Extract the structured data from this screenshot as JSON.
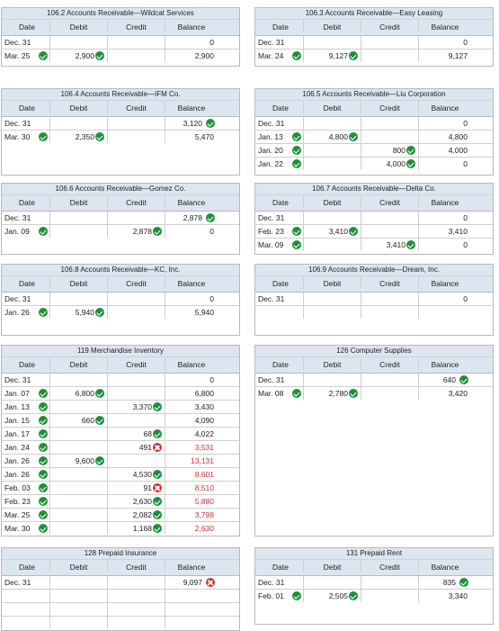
{
  "headers": {
    "date": "Date",
    "debit": "Debit",
    "credit": "Credit",
    "balance": "Balance"
  },
  "colors": {
    "check": "#1f8f3a",
    "cross": "#d0342c",
    "header_bg": "#dce6f0"
  },
  "ledgers": [
    {
      "title": "106.2 Accounts Receivable—Wildcat Services",
      "rows": [
        {
          "date": "Dec. 31",
          "debit": "",
          "credit": "",
          "balance": "0"
        },
        {
          "date": "Mar. 25",
          "date_ok": true,
          "debit": "2,900",
          "debit_ok": true,
          "credit": "",
          "balance": "2,900"
        }
      ]
    },
    {
      "title": "106.3 Accounts Receivable—Easy Leasing",
      "rows": [
        {
          "date": "Dec. 31",
          "debit": "",
          "credit": "",
          "balance": "0"
        },
        {
          "date": "Mar. 24",
          "date_ok": true,
          "debit": "9,127",
          "debit_ok": true,
          "credit": "",
          "balance": "9,127"
        }
      ]
    },
    {
      "title": "106.4 Accounts Receivable—IFM Co.",
      "rows": [
        {
          "date": "Dec. 31",
          "debit": "",
          "credit": "",
          "balance": "3,120",
          "balance_ok": true
        },
        {
          "date": "Mar. 30",
          "date_ok": true,
          "debit": "2,350",
          "debit_ok": true,
          "credit": "",
          "balance": "5,470"
        }
      ]
    },
    {
      "title": "106.5 Accounts Receivable—Liu Corporation",
      "rows": [
        {
          "date": "Dec. 31",
          "debit": "",
          "credit": "",
          "balance": "0"
        },
        {
          "date": "Jan. 13",
          "date_ok": true,
          "debit": "4,800",
          "debit_ok": true,
          "credit": "",
          "balance": "4,800"
        },
        {
          "date": "Jan. 20",
          "date_ok": true,
          "debit": "",
          "credit": "800",
          "credit_ok": true,
          "balance": "4,000"
        },
        {
          "date": "Jan. 22",
          "date_ok": true,
          "debit": "",
          "credit": "4,000",
          "credit_ok": true,
          "balance": "0"
        }
      ]
    },
    {
      "title": "106.6 Accounts Receivable—Gomez Co.",
      "rows": [
        {
          "date": "Dec. 31",
          "debit": "",
          "credit": "",
          "balance": "2,878",
          "balance_ok": true
        },
        {
          "date": "Jan. 09",
          "date_ok": true,
          "debit": "",
          "credit": "2,878",
          "credit_ok": true,
          "balance": "0"
        }
      ]
    },
    {
      "title": "106.7 Accounts Receivable—Delta Co.",
      "rows": [
        {
          "date": "Dec. 31",
          "debit": "",
          "credit": "",
          "balance": "0"
        },
        {
          "date": "Feb. 23",
          "date_ok": true,
          "debit": "3,410",
          "debit_ok": true,
          "credit": "",
          "balance": "3,410"
        },
        {
          "date": "Mar. 09",
          "date_ok": true,
          "debit": "",
          "credit": "3,410",
          "credit_ok": true,
          "balance": "0"
        }
      ]
    },
    {
      "title": "106.8 Accounts Receivable—KC, Inc.",
      "rows": [
        {
          "date": "Dec. 31",
          "debit": "",
          "credit": "",
          "balance": "0"
        },
        {
          "date": "Jan. 26",
          "date_ok": true,
          "debit": "5,940",
          "debit_ok": true,
          "credit": "",
          "balance": "5,940"
        }
      ]
    },
    {
      "title": "106.9 Accounts Receivable—Dream, Inc.",
      "rows": [
        {
          "date": "Dec. 31",
          "debit": "",
          "credit": "",
          "balance": "0"
        },
        {
          "date": "",
          "debit": "",
          "credit": "",
          "balance": ""
        }
      ]
    },
    {
      "title": "119 Merchandise Inventory",
      "rows": [
        {
          "date": "Dec. 31",
          "debit": "",
          "credit": "",
          "balance": "0"
        },
        {
          "date": "Jan. 07",
          "date_ok": true,
          "debit": "6,800",
          "debit_ok": true,
          "credit": "",
          "balance": "6,800"
        },
        {
          "date": "Jan. 13",
          "date_ok": true,
          "debit": "",
          "credit": "3,370",
          "credit_ok": true,
          "balance": "3,430"
        },
        {
          "date": "Jan. 15",
          "date_ok": true,
          "debit": "660",
          "debit_ok": true,
          "credit": "",
          "balance": "4,090"
        },
        {
          "date": "Jan. 17",
          "date_ok": true,
          "debit": "",
          "credit": "68",
          "credit_ok": true,
          "balance": "4,022"
        },
        {
          "date": "Jan. 24",
          "date_ok": true,
          "debit": "",
          "credit": "491",
          "credit_bad": true,
          "balance": "3,531",
          "balance_red": true
        },
        {
          "date": "Jan. 26",
          "date_ok": true,
          "debit": "9,600",
          "debit_ok": true,
          "credit": "",
          "balance": "13,131",
          "balance_red": true
        },
        {
          "date": "Jan. 26",
          "date_ok": true,
          "debit": "",
          "credit": "4,530",
          "credit_ok": true,
          "balance": "8,601",
          "balance_red": true
        },
        {
          "date": "Feb. 03",
          "date_ok": true,
          "debit": "",
          "credit": "91",
          "credit_bad": true,
          "balance": "8,510",
          "balance_red": true
        },
        {
          "date": "Feb. 23",
          "date_ok": true,
          "debit": "",
          "credit": "2,630",
          "credit_ok": true,
          "balance": "5,880",
          "balance_red": true
        },
        {
          "date": "Mar. 25",
          "date_ok": true,
          "debit": "",
          "credit": "2,082",
          "credit_ok": true,
          "balance": "3,798",
          "balance_red": true
        },
        {
          "date": "Mar. 30",
          "date_ok": true,
          "debit": "",
          "credit": "1,168",
          "credit_ok": true,
          "balance": "2,630",
          "balance_red": true
        }
      ]
    },
    {
      "title": "126 Computer Supplies",
      "rows": [
        {
          "date": "Dec. 31",
          "debit": "",
          "credit": "",
          "balance": "640",
          "balance_ok": true
        },
        {
          "date": "Mar. 08",
          "date_ok": true,
          "debit": "2,780",
          "debit_ok": true,
          "credit": "",
          "balance": "3,420"
        }
      ]
    },
    {
      "title": "128 Prepaid Insurance",
      "rows": [
        {
          "date": "Dec. 31",
          "debit": "",
          "credit": "",
          "balance": "9,097",
          "balance_bad": true
        },
        {
          "date": "",
          "debit": "",
          "credit": "",
          "balance": ""
        },
        {
          "date": "",
          "debit": "",
          "credit": "",
          "balance": ""
        },
        {
          "date": "",
          "debit": "",
          "credit": "",
          "balance": ""
        }
      ]
    },
    {
      "title": "131 Prepaid Rent",
      "rows": [
        {
          "date": "Dec. 31",
          "debit": "",
          "credit": "",
          "balance": "835",
          "balance_ok": true
        },
        {
          "date": "Feb. 01",
          "date_ok": true,
          "debit": "2,505",
          "debit_ok": true,
          "credit": "",
          "balance": "3,340"
        }
      ]
    }
  ]
}
